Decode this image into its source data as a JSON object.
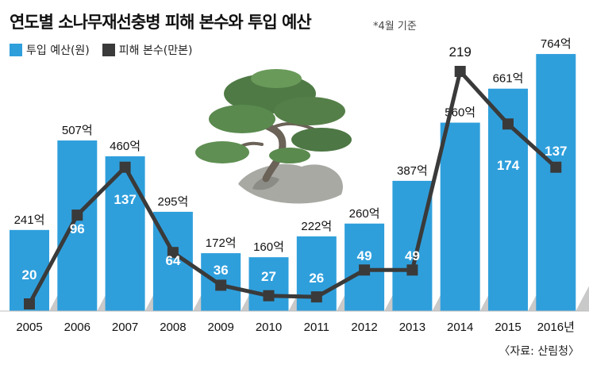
{
  "title": "연도별 소나무재선충병 피해 본수와 투입 예산",
  "note": "*4월 기준",
  "source": "〈자료: 산림청〉",
  "colors": {
    "bar": "#2f9fdc",
    "line": "#3a3a3a",
    "shadow": "#c9c9c9"
  },
  "chart_data": {
    "type": "bar",
    "categories": [
      "2005",
      "2006",
      "2007",
      "2008",
      "2009",
      "2010",
      "2011",
      "2012",
      "2013",
      "2014",
      "2015",
      "2016년"
    ],
    "series": [
      {
        "name": "투입 예산(원)",
        "type": "bar",
        "values": [
          241,
          507,
          460,
          295,
          172,
          160,
          222,
          260,
          387,
          560,
          661,
          764
        ],
        "labels": [
          "241억",
          "507억",
          "460억",
          "295억",
          "172억",
          "160억",
          "222억",
          "260억",
          "387억",
          "560억",
          "661억",
          "764억"
        ]
      },
      {
        "name": "피해 본수(만본)",
        "type": "line",
        "values": [
          20,
          96,
          137,
          64,
          36,
          27,
          26,
          49,
          49,
          219,
          174,
          137
        ],
        "labels": [
          "20",
          "96",
          "137",
          "64",
          "36",
          "27",
          "26",
          "49",
          "49",
          "219",
          "174",
          "137"
        ]
      }
    ]
  }
}
